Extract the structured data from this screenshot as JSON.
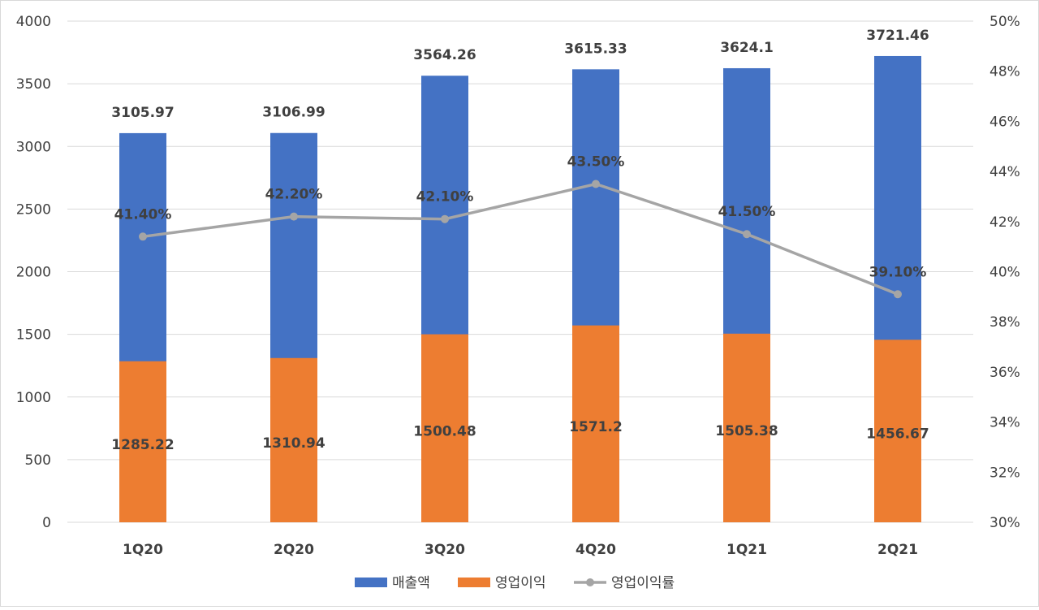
{
  "chart_data": {
    "type": "bar+line",
    "categories": [
      "1Q20",
      "2Q20",
      "3Q20",
      "4Q20",
      "1Q21",
      "2Q21"
    ],
    "series": [
      {
        "name": "매출액",
        "type": "bar",
        "axis": "left",
        "color": "#4472C4",
        "values": [
          3105.97,
          3106.99,
          3564.26,
          3615.33,
          3624.1,
          3721.46
        ],
        "labels": [
          "3105.97",
          "3106.99",
          "3564.26",
          "3615.33",
          "3624.1",
          "3721.46"
        ]
      },
      {
        "name": "영업이익",
        "type": "bar",
        "axis": "left",
        "color": "#ED7D31",
        "values": [
          1285.22,
          1310.94,
          1500.48,
          1571.2,
          1505.38,
          1456.67
        ],
        "labels": [
          "1285.22",
          "1310.94",
          "1500.48",
          "1571.2",
          "1505.38",
          "1456.67"
        ]
      },
      {
        "name": "영업이익률",
        "type": "line",
        "axis": "right",
        "color": "#A5A5A5",
        "values": [
          41.4,
          42.2,
          42.1,
          43.5,
          41.5,
          39.1
        ],
        "labels": [
          "41.40%",
          "42.20%",
          "42.10%",
          "43.50%",
          "41.50%",
          "39.10%"
        ]
      }
    ],
    "ylim": [
      0,
      4000
    ],
    "y_ticks": [
      "0",
      "500",
      "1000",
      "1500",
      "2000",
      "2500",
      "3000",
      "3500",
      "4000"
    ],
    "y2lim": [
      30,
      50
    ],
    "y2_ticks": [
      "30%",
      "32%",
      "34%",
      "36%",
      "38%",
      "40%",
      "42%",
      "44%",
      "46%",
      "48%",
      "50%"
    ],
    "grid": true,
    "legend": "bottom"
  }
}
